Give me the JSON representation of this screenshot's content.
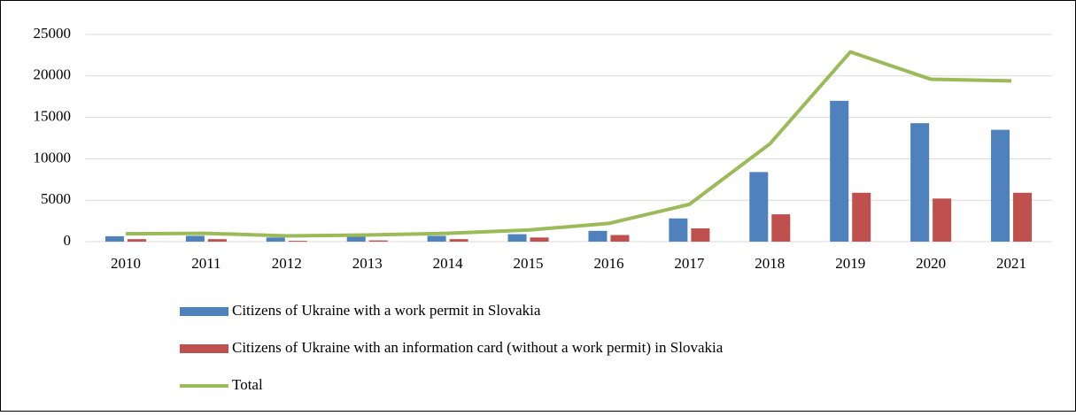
{
  "chart_data": {
    "type": "bar",
    "categories": [
      "2010",
      "2011",
      "2012",
      "2013",
      "2014",
      "2015",
      "2016",
      "2017",
      "2018",
      "2019",
      "2020",
      "2021"
    ],
    "series": [
      {
        "name": "Citizens of Ukraine with a work permit in Slovakia",
        "type": "bar",
        "color": "#4f81bd",
        "values": [
          650,
          700,
          500,
          600,
          700,
          900,
          1300,
          2800,
          8400,
          17000,
          14300,
          13500
        ]
      },
      {
        "name": "Citizens of Ukraine with an information card (without a work permit) in Slovakia",
        "type": "bar",
        "color": "#c0504d",
        "values": [
          300,
          300,
          100,
          150,
          300,
          500,
          800,
          1600,
          3300,
          5900,
          5200,
          5900
        ]
      },
      {
        "name": "Total",
        "type": "line",
        "color": "#9bbb59",
        "values": [
          950,
          1000,
          700,
          800,
          1000,
          1400,
          2200,
          4500,
          11800,
          22900,
          19600,
          19400
        ]
      }
    ],
    "ylim": [
      0,
      25000
    ],
    "yticks": [
      0,
      5000,
      10000,
      15000,
      20000,
      25000
    ],
    "grid": true,
    "legend": "bottom"
  }
}
